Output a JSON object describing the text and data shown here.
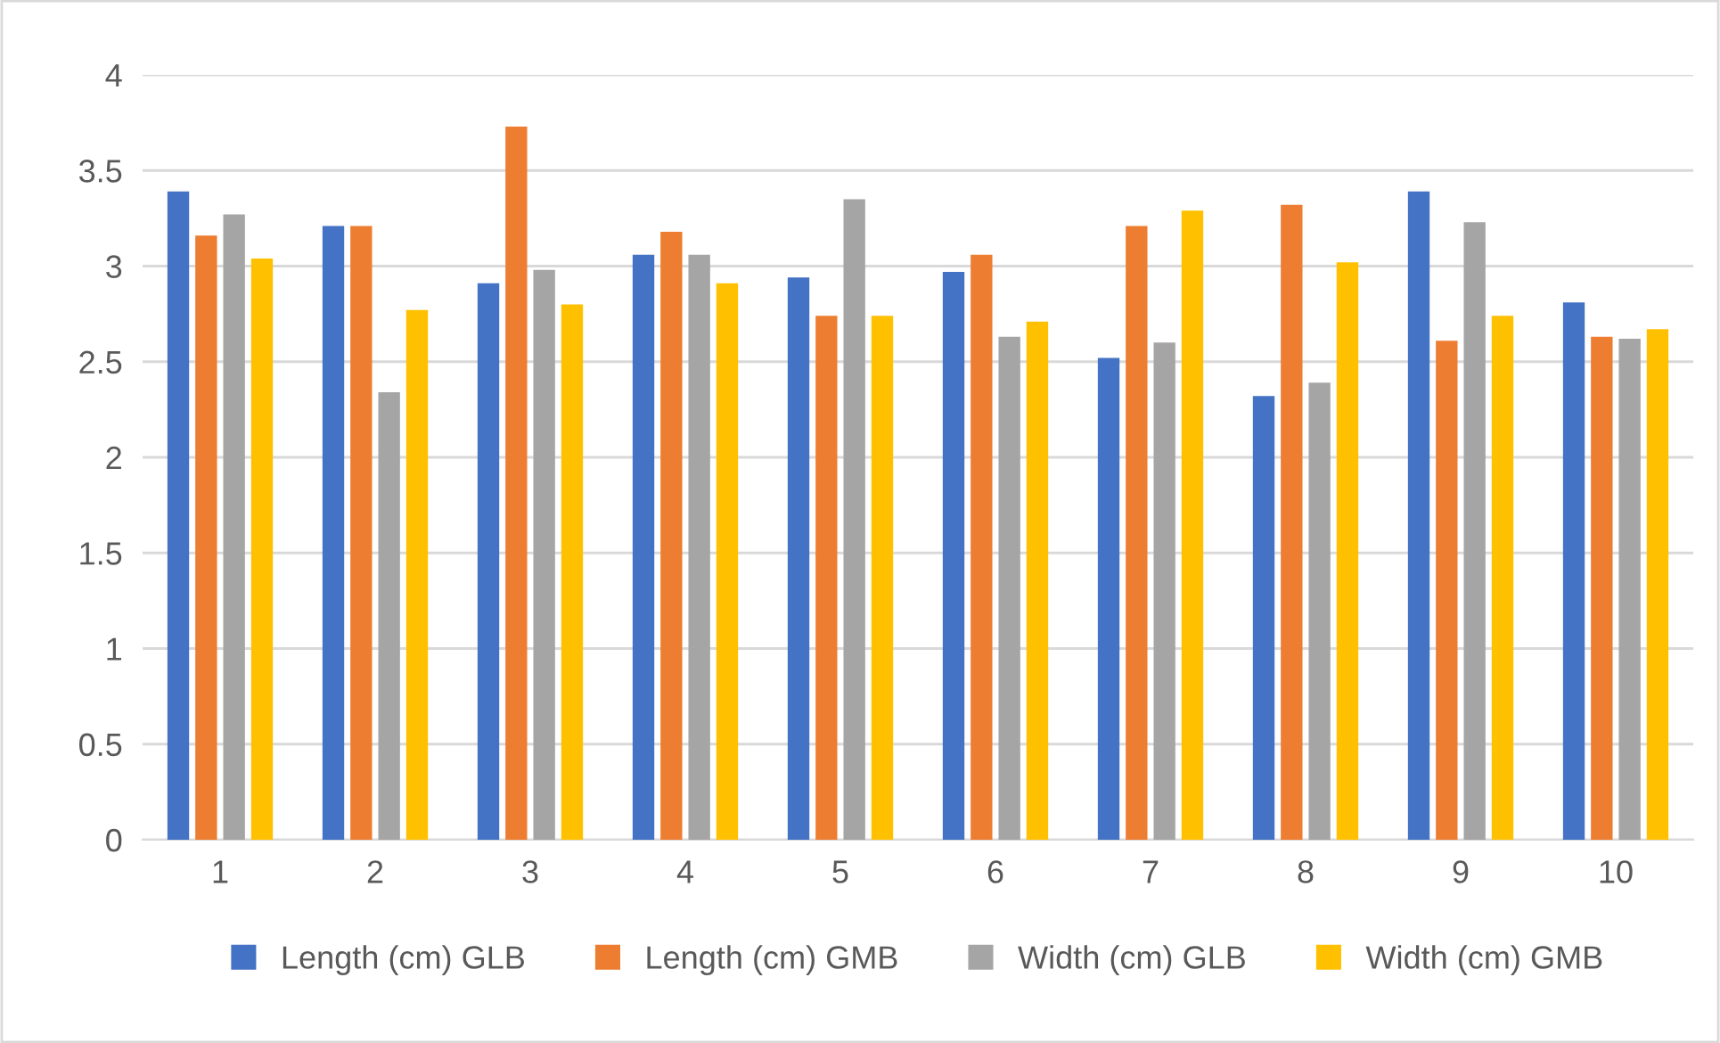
{
  "chart_data": {
    "type": "bar",
    "categories": [
      "1",
      "2",
      "3",
      "4",
      "5",
      "6",
      "7",
      "8",
      "9",
      "10"
    ],
    "series": [
      {
        "name": "Length (cm) GLB",
        "color": "#4472c4",
        "values": [
          3.39,
          3.21,
          2.91,
          3.06,
          2.94,
          2.97,
          2.52,
          2.32,
          3.39,
          2.81
        ]
      },
      {
        "name": "Length (cm) GMB",
        "color": "#ed7d31",
        "values": [
          3.16,
          3.21,
          3.73,
          3.18,
          2.74,
          3.06,
          3.21,
          3.32,
          2.61,
          2.63
        ]
      },
      {
        "name": "Width (cm) GLB",
        "color": "#a5a5a5",
        "values": [
          3.27,
          2.34,
          2.98,
          3.06,
          3.35,
          2.63,
          2.6,
          2.39,
          3.23,
          2.62
        ]
      },
      {
        "name": "Width (cm) GMB",
        "color": "#ffc000",
        "values": [
          3.04,
          2.77,
          2.8,
          2.91,
          2.74,
          2.71,
          3.29,
          3.02,
          2.74,
          2.67
        ]
      }
    ],
    "ylim": [
      0,
      4
    ],
    "yticks": [
      0,
      0.5,
      1,
      1.5,
      2,
      2.5,
      3,
      3.5,
      4
    ],
    "grid": "y",
    "legend": "bottom"
  }
}
